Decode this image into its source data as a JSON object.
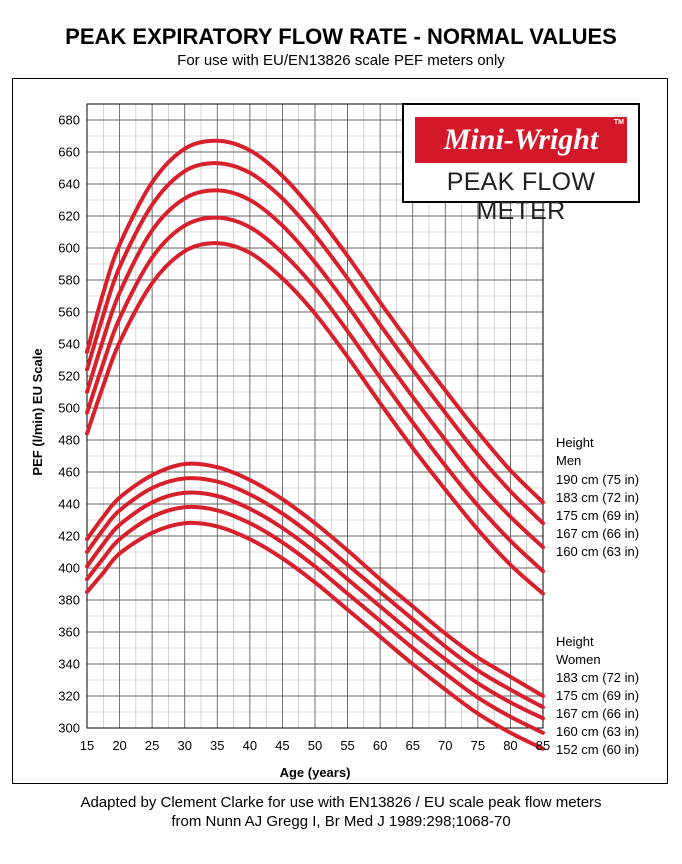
{
  "header": {
    "title": "PEAK EXPIRATORY FLOW RATE - NORMAL VALUES",
    "subtitle": "For use with EU/EN13826 scale PEF meters only"
  },
  "logo": {
    "brand": "Mini-Wright",
    "trademark": "TM",
    "product": "PEAK FLOW METER",
    "brand_color": "#d3182a"
  },
  "legend": {
    "men_heading": "Height",
    "men_group": "Men",
    "men_items": [
      "190 cm (75 in)",
      "183 cm (72 in)",
      "175 cm (69 in)",
      "167 cm (66 in)",
      "160 cm (63 in)"
    ],
    "women_heading": "Height",
    "women_group": "Women",
    "women_items": [
      "183 cm (72 in)",
      "175 cm (69 in)",
      "167 cm (66 in)",
      "160 cm (63 in)",
      "152 cm (60 in)"
    ]
  },
  "footer": {
    "line1": "Adapted by Clement Clarke for use with EN13826 / EU scale peak flow meters",
    "line2": "from Nunn AJ Gregg I, Br Med J 1989:298;1068-70"
  },
  "chart_data": {
    "type": "line",
    "title": "PEAK EXPIRATORY FLOW RATE - NORMAL VALUES",
    "xlabel": "Age (years)",
    "ylabel": "PEF (l/min) EU Scale",
    "xlim": [
      15,
      85
    ],
    "ylim": [
      300,
      690
    ],
    "x_ticks": [
      15,
      20,
      25,
      30,
      35,
      40,
      45,
      50,
      55,
      60,
      65,
      70,
      75,
      80,
      85
    ],
    "y_ticks": [
      300,
      320,
      340,
      360,
      380,
      400,
      420,
      440,
      460,
      480,
      500,
      520,
      540,
      560,
      580,
      600,
      620,
      640,
      660,
      680
    ],
    "x_minor_step": 2.5,
    "y_minor_step": 10,
    "grid": true,
    "line_color": "#d8202c",
    "x": [
      15,
      17.5,
      20,
      25,
      30,
      35,
      40,
      45,
      50,
      55,
      60,
      65,
      70,
      75,
      80,
      85
    ],
    "series": [
      {
        "name": "190 cm (75 in)",
        "values": [
          535,
          572,
          602,
          641,
          662,
          667,
          661,
          645,
          622,
          595,
          566,
          538,
          511,
          485,
          461,
          441
        ]
      },
      {
        "name": "183 cm (72 in)",
        "values": [
          524,
          558,
          588,
          627,
          648,
          653,
          647,
          631,
          608,
          581,
          552,
          524,
          497,
          471,
          448,
          428
        ]
      },
      {
        "name": "175 cm (69 in)",
        "values": [
          510,
          543,
          572,
          611,
          631,
          636,
          630,
          614,
          591,
          564,
          535,
          507,
          480,
          454,
          432,
          413
        ]
      },
      {
        "name": "167 cm (66 in)",
        "values": [
          497,
          528,
          556,
          594,
          614,
          619,
          613,
          597,
          575,
          548,
          519,
          491,
          464,
          439,
          417,
          398
        ]
      },
      {
        "name": "160 cm (63 in)",
        "values": [
          484,
          514,
          541,
          578,
          598,
          603,
          597,
          581,
          559,
          532,
          503,
          475,
          449,
          424,
          402,
          384
        ]
      },
      {
        "name": "183 cm (72 in)",
        "values": [
          418,
          432,
          444,
          458,
          465,
          463,
          455,
          443,
          428,
          411,
          393,
          376,
          359,
          344,
          332,
          320
        ]
      },
      {
        "name": "175 cm (69 in)",
        "values": [
          410,
          424,
          436,
          450,
          456,
          454,
          446,
          434,
          419,
          402,
          385,
          368,
          351,
          336,
          324,
          313
        ]
      },
      {
        "name": "167 cm (66 in)",
        "values": [
          401,
          415,
          427,
          441,
          447,
          445,
          437,
          425,
          410,
          393,
          376,
          359,
          343,
          328,
          316,
          306
        ]
      },
      {
        "name": "160 cm (63 in)",
        "values": [
          393,
          406,
          418,
          432,
          438,
          436,
          428,
          416,
          401,
          384,
          367,
          350,
          334,
          319,
          307,
          297
        ]
      },
      {
        "name": "152 cm (60 in)",
        "values": [
          385,
          397,
          409,
          422,
          428,
          426,
          418,
          406,
          391,
          374,
          357,
          340,
          324,
          309,
          297,
          287
        ]
      }
    ]
  }
}
